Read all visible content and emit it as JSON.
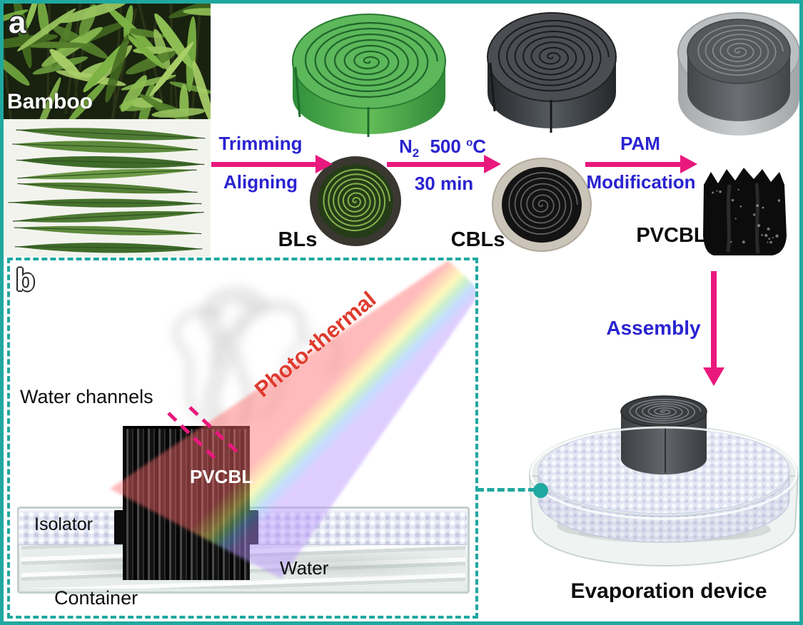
{
  "colors": {
    "teal": "#1FA89F",
    "magenta": "#E9187D",
    "blue": "#2A23D0",
    "red": "#DF3B2F"
  },
  "panel_a": {
    "label": "a",
    "bamboo_caption": "Bamboo",
    "arrow1": {
      "top": "Trimming",
      "bottom": "Aligning"
    },
    "arrow2": {
      "gas": "N",
      "gas_sub": "2",
      "temp": "500",
      "deg_sup": "o",
      "deg_unit": "C",
      "bottom": "30 min"
    },
    "arrow3": {
      "top": "PAM",
      "bottom": "Modification"
    },
    "product1": "BLs",
    "product2": "CBLs",
    "product3": "PVCBL"
  },
  "assembly_arrow": {
    "label": "Assembly"
  },
  "panel_b": {
    "label": "b",
    "water_channels_label": "Water channels",
    "beam_label": "Photo-thermal",
    "block_label": "PVCBL",
    "isolator_label": "Isolator",
    "water_label": "Water",
    "container_label": "Container"
  },
  "device": {
    "caption": "Evaporation device"
  }
}
